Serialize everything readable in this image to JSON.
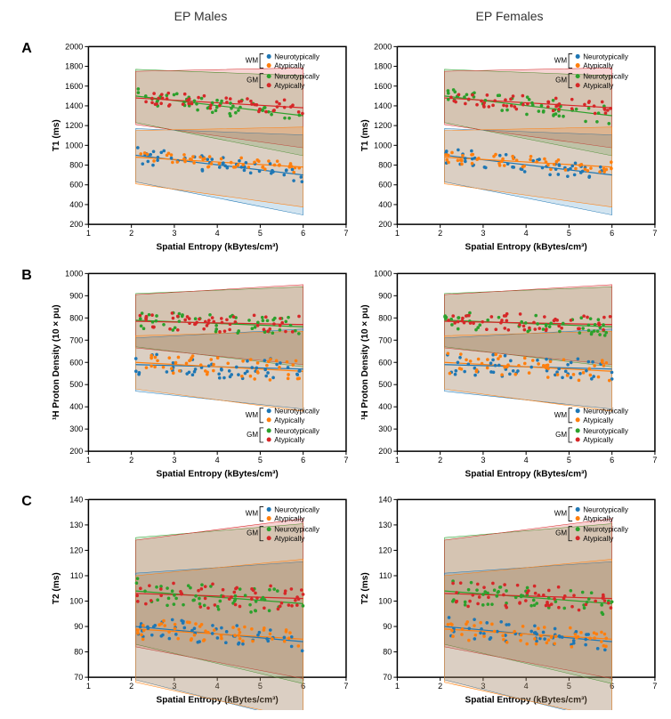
{
  "columns": [
    "EP Males",
    "EP Females"
  ],
  "rows": [
    "A",
    "B",
    "C"
  ],
  "colors": {
    "wm_neuro": "#1f77b4",
    "wm_atyp": "#ff7f0e",
    "gm_neuro": "#2ca02c",
    "gm_atyp": "#d62728",
    "wm_neuro_fill": "rgba(31,119,180,0.2)",
    "wm_atyp_fill": "rgba(255,127,14,0.2)",
    "gm_neuro_fill": "rgba(44,160,44,0.2)",
    "gm_atyp_fill": "rgba(214,39,40,0.2)"
  },
  "legend_labels": {
    "wm": "WM",
    "gm": "GM",
    "neuro": "Neurotypically",
    "atyp": "Atypically"
  },
  "xaxis": {
    "label": "Spatial Entropy (kBytes/cm³)",
    "min": 1,
    "max": 7,
    "ticks": [
      1,
      2,
      3,
      4,
      5,
      6,
      7
    ]
  },
  "panels": {
    "A": {
      "ylabel": "T1 (ms)",
      "ymin": 200,
      "ymax": 2000,
      "yticks": [
        200,
        400,
        600,
        800,
        1000,
        1200,
        1400,
        1600,
        1800,
        2000
      ],
      "legend_pos": "top-right",
      "series": {
        "wm_neuro": {
          "y0": 900,
          "y1": 700,
          "scatter": 80
        },
        "wm_atyp": {
          "y0": 880,
          "y1": 780,
          "scatter": 60
        },
        "gm_neuro": {
          "y0": 1500,
          "y1": 1300,
          "scatter": 90
        },
        "gm_atyp": {
          "y0": 1480,
          "y1": 1380,
          "scatter": 70
        }
      }
    },
    "B": {
      "ylabel": "¹H Proton Density (10 × pu)",
      "ymin": 200,
      "ymax": 1000,
      "yticks": [
        200,
        300,
        400,
        500,
        600,
        700,
        800,
        900,
        1000
      ],
      "legend_pos": "bottom-right",
      "series": {
        "wm_neuro": {
          "y0": 590,
          "y1": 570,
          "scatter": 50
        },
        "wm_atyp": {
          "y0": 600,
          "y1": 560,
          "scatter": 50
        },
        "gm_neuro": {
          "y0": 790,
          "y1": 760,
          "scatter": 40
        },
        "gm_atyp": {
          "y0": 785,
          "y1": 770,
          "scatter": 40
        }
      }
    },
    "C": {
      "ylabel": "T2 (ms)",
      "ymin": 70,
      "ymax": 140,
      "yticks": [
        70,
        80,
        90,
        100,
        110,
        120,
        130,
        140
      ],
      "legend_pos": "top-right",
      "series": {
        "wm_neuro": {
          "y0": 90,
          "y1": 84,
          "scatter": 4
        },
        "wm_atyp": {
          "y0": 89,
          "y1": 85,
          "scatter": 4
        },
        "gm_neuro": {
          "y0": 104,
          "y1": 99,
          "scatter": 5
        },
        "gm_atyp": {
          "y0": 103,
          "y1": 101,
          "scatter": 5
        }
      }
    }
  },
  "marker_radius": 1.8,
  "n_points_per_series": 50,
  "line_width": 1.2,
  "ci_width": 15
}
